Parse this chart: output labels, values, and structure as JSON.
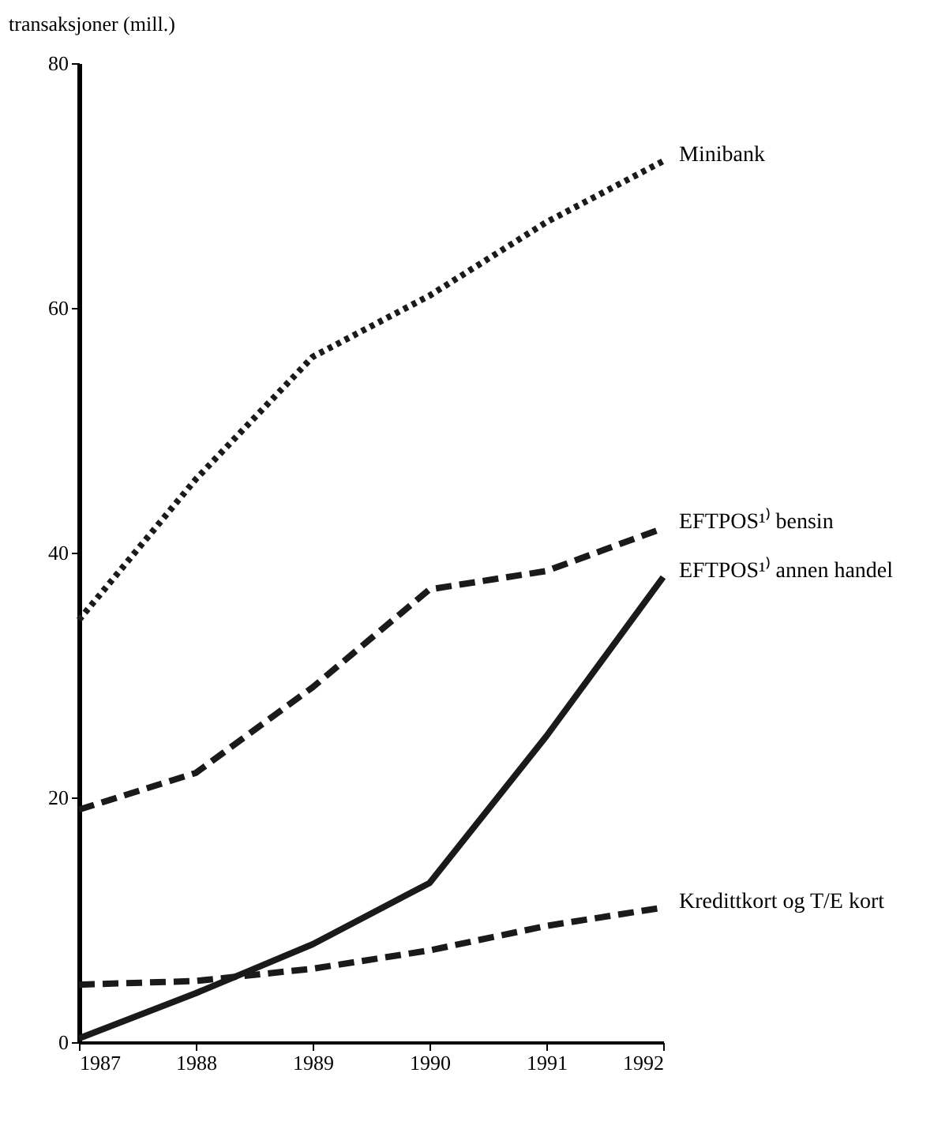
{
  "chart_data": {
    "type": "line",
    "ylabel": "transaksjoner (mill.)",
    "x": [
      1987,
      1988,
      1989,
      1990,
      1991,
      1992
    ],
    "xlim": [
      1987,
      1992
    ],
    "xticks": [
      1987,
      1988,
      1989,
      1990,
      1991,
      1992
    ],
    "ylim": [
      0,
      80
    ],
    "yticks": [
      0,
      20,
      40,
      60,
      80
    ],
    "grid": false,
    "legend": false,
    "series": [
      {
        "name": "Minibank",
        "color": "#1a1a1a",
        "line_style": "dotted",
        "values": [
          34.5,
          46,
          56,
          61,
          67,
          72
        ]
      },
      {
        "name": "EFTPOS¹⁾ bensin",
        "color": "#1a1a1a",
        "line_style": "dashed",
        "values": [
          19,
          22,
          29,
          37,
          38.5,
          42
        ]
      },
      {
        "name": "EFTPOS¹⁾ annen handel",
        "color": "#1a1a1a",
        "line_style": "solid",
        "values": [
          0.3,
          4,
          8,
          13,
          25,
          38
        ]
      },
      {
        "name": "Kredittkort og T/E kort",
        "color": "#1a1a1a",
        "line_style": "dashed",
        "values": [
          4.7,
          5,
          6,
          7.5,
          9.5,
          11
        ]
      }
    ]
  }
}
